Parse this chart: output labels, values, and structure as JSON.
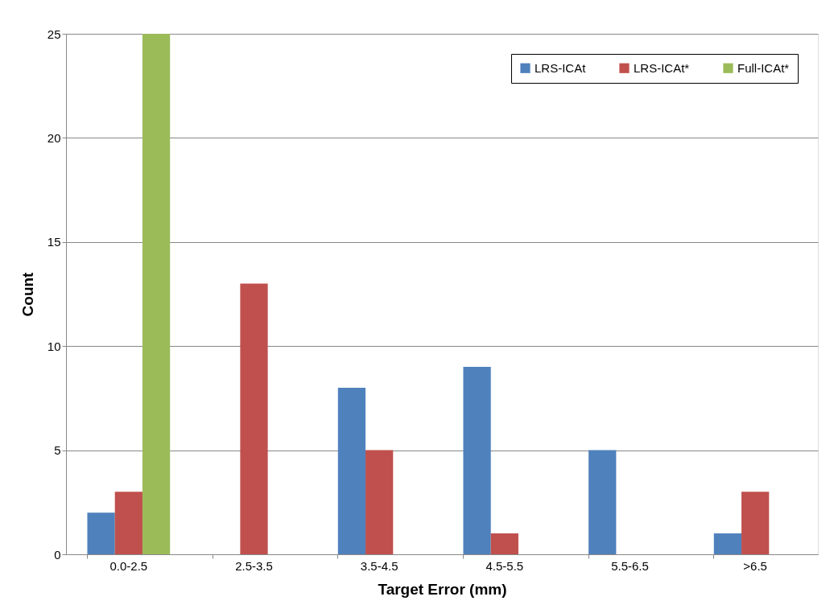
{
  "chart_data": {
    "type": "bar",
    "xlabel": "Target Error (mm)",
    "ylabel": "Count",
    "categories": [
      "0.0-2.5",
      "2.5-3.5",
      "3.5-4.5",
      "4.5-5.5",
      "5.5-6.5",
      ">6.5"
    ],
    "series": [
      {
        "name": "LRS-ICAt",
        "color": "#4f81bd",
        "values": [
          2,
          0,
          8,
          9,
          5,
          1
        ]
      },
      {
        "name": "LRS-ICAt*",
        "color": "#c0504d",
        "values": [
          3,
          13,
          5,
          1,
          0,
          3
        ]
      },
      {
        "name": "Full-ICAt*",
        "color": "#9bbb59",
        "values": [
          25,
          0,
          0,
          0,
          0,
          0
        ]
      }
    ],
    "ylim": [
      0,
      25
    ],
    "yticks": [
      0,
      5,
      10,
      15,
      20,
      25
    ],
    "grid": "y",
    "legend": "top right"
  }
}
